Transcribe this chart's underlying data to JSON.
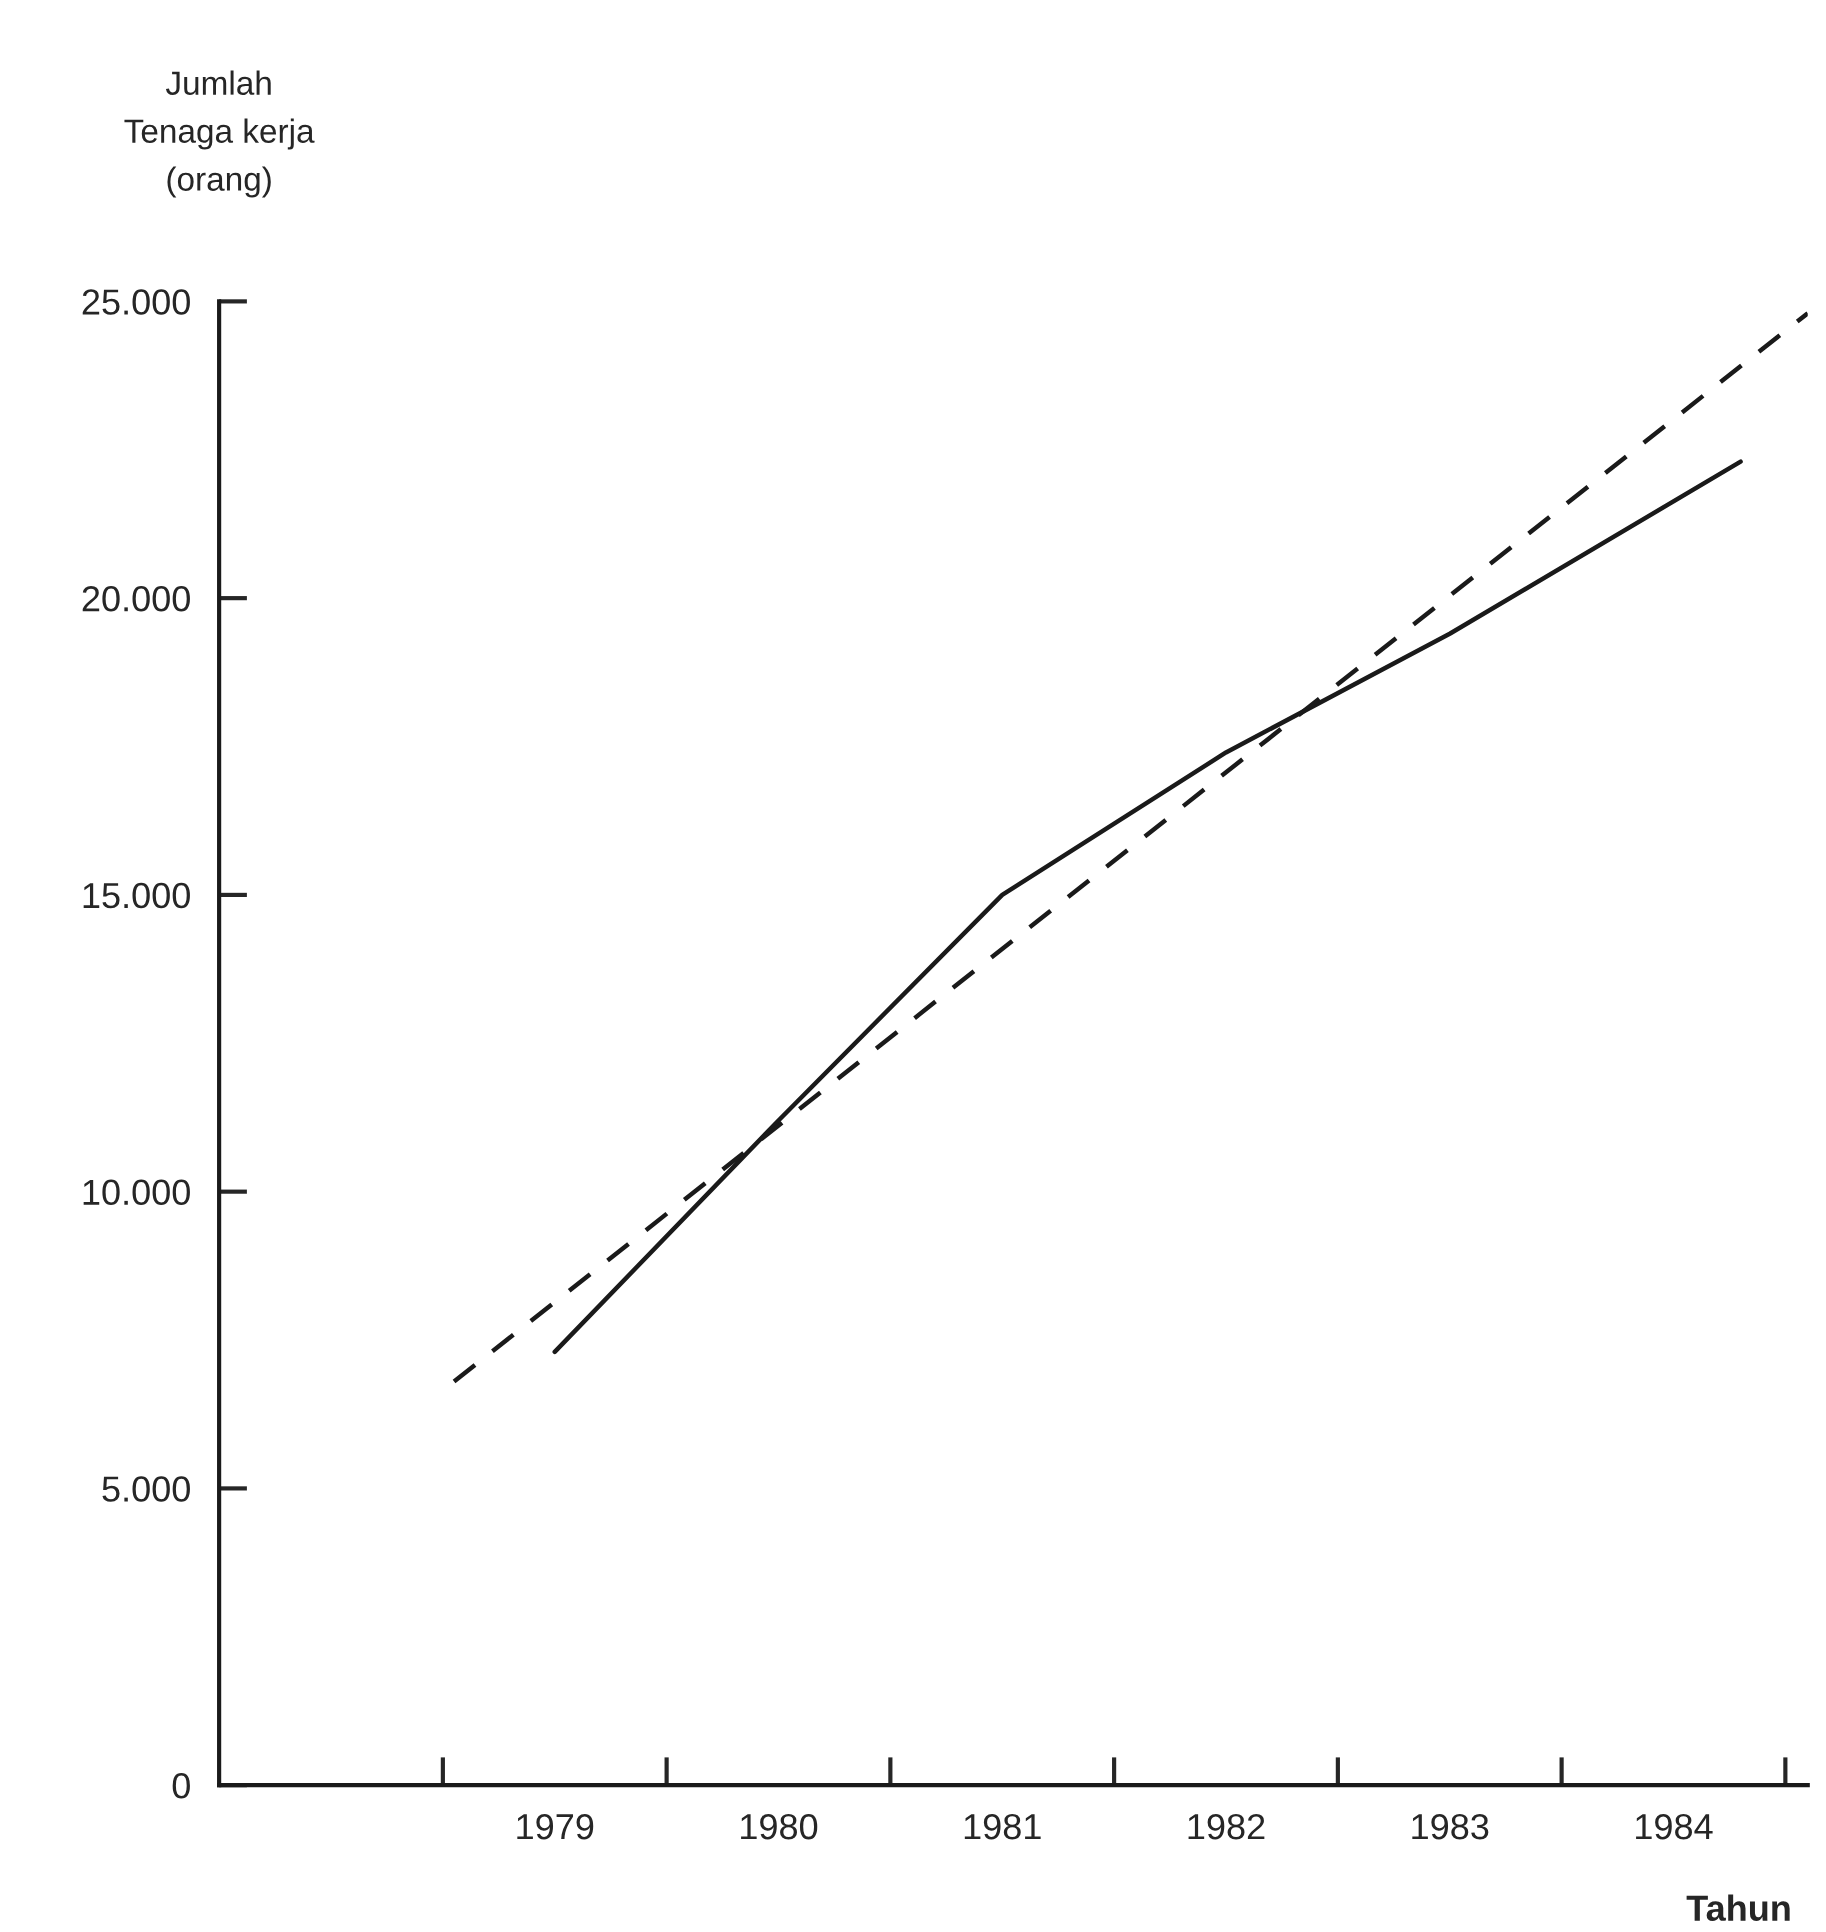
{
  "chart_data": {
    "type": "line",
    "ylabel": "Jumlah\nTenaga kerja\n(orang)",
    "xlabel": "Tahun",
    "series": [
      {
        "color": "#1a1a1a",
        "line_style": "solid",
        "x": [
          1979,
          1980,
          1981,
          1982,
          1983,
          1984.3
        ],
        "values": [
          7300,
          11200,
          15000,
          17400,
          19400,
          22300
        ]
      },
      {
        "color": "#1a1a1a",
        "line_style": "dashed",
        "x": [
          1978.55,
          1984.6
        ],
        "values": [
          6800,
          24800
        ]
      }
    ],
    "xlim": [
      1977.5,
      1984.6
    ],
    "xticks": [
      {
        "value": 1978.5,
        "label": null
      },
      {
        "value": 1979,
        "label": "1979"
      },
      {
        "value": 1979.5,
        "label": null
      },
      {
        "value": 1980,
        "label": "1980"
      },
      {
        "value": 1980.5,
        "label": null
      },
      {
        "value": 1981,
        "label": "1981"
      },
      {
        "value": 1981.5,
        "label": null
      },
      {
        "value": 1982,
        "label": "1982"
      },
      {
        "value": 1982.5,
        "label": null
      },
      {
        "value": 1983,
        "label": "1983"
      },
      {
        "value": 1983.5,
        "label": null
      },
      {
        "value": 1984,
        "label": "1984"
      },
      {
        "value": 1984.5,
        "label": null
      }
    ],
    "ylim": [
      0,
      25000
    ],
    "yticks": [
      {
        "value": 0,
        "label": "0"
      },
      {
        "value": 5000,
        "label": "5.000"
      },
      {
        "value": 10000,
        "label": "10.000"
      },
      {
        "value": 15000,
        "label": "15.000"
      },
      {
        "value": 20000,
        "label": "20.000"
      },
      {
        "value": 25000,
        "label": "25.000"
      }
    ]
  }
}
